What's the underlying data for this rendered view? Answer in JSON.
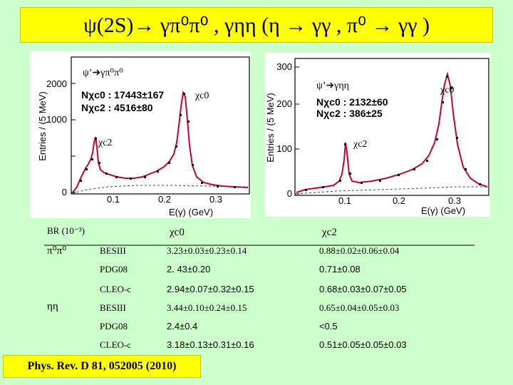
{
  "title": "ψ(2S)→ γπ⁰π⁰ , γηη (η → γγ ,  π⁰ → γγ )",
  "left_plot": {
    "mode": "ψ’➔γπ⁰π⁰",
    "chi_c0_label": "χc0",
    "chi_c2_label": "χc2",
    "n_chi_c0": "Nχc0 : 17443±167",
    "n_chi_c2": "Nχc2 : 4516±80",
    "ylabel": "Entries / (5 MeV)",
    "xlabel": "E(γ)  (GeV)",
    "yticks": [
      "0",
      "1000",
      "2000"
    ],
    "xticks": [
      "0.1",
      "0.2",
      "0.3"
    ]
  },
  "right_plot": {
    "mode": "ψ’➔γηη",
    "chi_c0_label": "χc0",
    "chi_c2_label": "χc2",
    "n_chi_c0": "Nχc0 : 2132±60",
    "n_chi_c2": "Nχc2 : 386±25",
    "ylabel": "Entries / (5 MeV)",
    "xlabel": "E(γ)  (GeV)",
    "yticks": [
      "0",
      "100",
      "200",
      "300"
    ],
    "xticks": [
      "0.1",
      "0.2",
      "0.3"
    ]
  },
  "table": {
    "header_br": "BR (10⁻³)",
    "header_c0": "χc0",
    "header_c2": "χc2",
    "groups": [
      {
        "mode": "π⁰π⁰",
        "rows": [
          {
            "exp": "BESIII",
            "c0": "3.23±0.03±0.23±0.14",
            "c2": "0.88±0.02±0.06±0.04"
          },
          {
            "exp": "PDG08",
            "c0": "2. 43±0.20",
            "c2": "0.71±0.08"
          },
          {
            "exp": "CLEO-c",
            "c0": "2.94±0.07±0.32±0.15",
            "c2": "0.68±0.03±0.07±0.05"
          }
        ]
      },
      {
        "mode": "ηη",
        "rows": [
          {
            "exp": "BESIII",
            "c0": "3.44±0.10±0.24±0.15",
            "c2": "0.65±0.04±0.05±0.03"
          },
          {
            "exp": "PDG08",
            "c0": "2.4±0.4",
            "c2": "<0.5"
          },
          {
            "exp": "CLEO-c",
            "c0": "3.18±0.13±0.31±0.16",
            "c2": "0.51±0.05±0.05±0.03"
          }
        ]
      }
    ]
  },
  "reference": "Phys. Rev. D 81, 052005 (2010)"
}
